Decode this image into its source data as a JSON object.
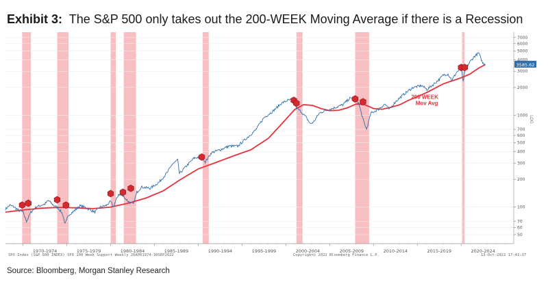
{
  "header": {
    "exhibit_label": "Exhibit 3:",
    "title": "The S&P 500 only takes out the 200-WEEK Moving Average if there is a Recession"
  },
  "footer": {
    "left_text": "SPX Index (S&P 500 INDEX) SPX 200 Week Support  Weekly 26APR1974-30SEP2022",
    "center_text": "Copyright© 2022 Bloomberg Finance L.P.",
    "right_text": "13-Oct-2022 17:41:37"
  },
  "source": "Source: Bloomberg, Morgan Stanley Research",
  "chart_data": {
    "type": "line",
    "title": "The S&P 500 only takes out the 200-WEEK Moving Average if there is a Recession",
    "y_scale": "log",
    "ylim": [
      40,
      8000
    ],
    "xlim": [
      1968,
      2026
    ],
    "y_ticks": [
      50,
      60,
      70,
      100,
      200,
      300,
      400,
      500,
      600,
      700,
      1000,
      2000,
      3000,
      4000,
      5000,
      6000,
      7000
    ],
    "x_tick_labels": [
      "1970-1974",
      "1975-1979",
      "1980-1984",
      "1985-1989",
      "1990-1994",
      "1995-1999",
      "2000-2004",
      "2005-2009",
      "2010-2014",
      "2015-2019",
      "2020-2024"
    ],
    "last_value_label": "3585.62",
    "axis_side_label": "LOG",
    "annotation": {
      "line1": "200 WEEK",
      "line2": "Mov Avg"
    },
    "colors": {
      "price": "#2f6eaa",
      "moving_average": "#e8313a",
      "recession": "#f28b8f",
      "marker": "#d42a2f",
      "last_value_box": "#2f6eaa"
    },
    "recession_shading": [
      [
        1969.9,
        1970.9
      ],
      [
        1973.9,
        1975.2
      ],
      [
        1980.0,
        1980.6
      ],
      [
        1981.5,
        1982.9
      ],
      [
        1990.5,
        1991.2
      ],
      [
        2001.2,
        2001.9
      ],
      [
        2007.9,
        2009.5
      ],
      [
        2020.1,
        2020.4
      ]
    ],
    "series": [
      {
        "name": "SPX Index",
        "x": [
          1968.0,
          1968.5,
          1969.0,
          1969.5,
          1970.0,
          1970.4,
          1970.9,
          1971.5,
          1972.5,
          1972.9,
          1973.5,
          1974.0,
          1974.5,
          1974.8,
          1975.2,
          1975.8,
          1976.5,
          1977.0,
          1977.8,
          1978.2,
          1978.8,
          1979.5,
          1980.0,
          1980.3,
          1980.9,
          1981.5,
          1982.0,
          1982.6,
          1983.0,
          1983.5,
          1984.5,
          1985.5,
          1986.5,
          1987.0,
          1987.65,
          1987.85,
          1988.5,
          1989.5,
          1990.4,
          1990.8,
          1991.5,
          1992.5,
          1993.5,
          1994.5,
          1995.5,
          1996.5,
          1997.5,
          1998.5,
          1999.5,
          2000.2,
          2000.7,
          2001.2,
          2001.7,
          2002.3,
          2002.8,
          2003.2,
          2003.8,
          2004.5,
          2005.5,
          2006.5,
          2007.3,
          2007.8,
          2008.3,
          2008.8,
          2009.2,
          2009.7,
          2010.5,
          2011.3,
          2011.8,
          2012.5,
          2013.5,
          2014.5,
          2015.5,
          2016.1,
          2016.8,
          2017.5,
          2018.0,
          2018.5,
          2018.95,
          2019.5,
          2020.0,
          2020.22,
          2020.5,
          2021.0,
          2021.5,
          2022.0,
          2022.45,
          2022.75
        ],
        "y": [
          95,
          105,
          100,
          92,
          88,
          70,
          88,
          100,
          108,
          118,
          104,
          98,
          85,
          65,
          82,
          90,
          103,
          100,
          92,
          88,
          100,
          104,
          115,
          100,
          138,
          130,
          115,
          108,
          145,
          165,
          160,
          185,
          240,
          290,
          325,
          230,
          270,
          340,
          355,
          310,
          390,
          420,
          460,
          460,
          560,
          680,
          940,
          1100,
          1350,
          1450,
          1470,
          1200,
          1100,
          950,
          800,
          850,
          1050,
          1120,
          1200,
          1300,
          1530,
          1480,
          1350,
          900,
          700,
          1050,
          1150,
          1320,
          1150,
          1400,
          1700,
          2000,
          2100,
          1900,
          2150,
          2450,
          2750,
          2800,
          2400,
          2950,
          3200,
          2300,
          3200,
          3800,
          4350,
          4750,
          3700,
          3585.62
        ]
      },
      {
        "name": "200 WEEK Mov Avg",
        "x": [
          1968,
          1970,
          1972,
          1974,
          1976,
          1978,
          1980,
          1982,
          1984,
          1986,
          1988,
          1990,
          1992,
          1994,
          1996,
          1998,
          2000,
          2001,
          2002,
          2003,
          2004,
          2005,
          2006,
          2007,
          2008,
          2009,
          2010,
          2011,
          2012,
          2013,
          2014,
          2016,
          2018,
          2020,
          2021,
          2022,
          2022.75
        ],
        "y": [
          88,
          93,
          97,
          99,
          98,
          96,
          100,
          110,
          125,
          150,
          200,
          260,
          305,
          360,
          420,
          560,
          900,
          1150,
          1300,
          1280,
          1180,
          1120,
          1130,
          1200,
          1320,
          1300,
          1180,
          1160,
          1220,
          1300,
          1450,
          1750,
          2200,
          2550,
          2800,
          3250,
          3550
        ]
      }
    ],
    "markers": [
      {
        "x": 1969.9,
        "y": 105
      },
      {
        "x": 1970.6,
        "y": 110
      },
      {
        "x": 1973.9,
        "y": 120
      },
      {
        "x": 1974.9,
        "y": 105
      },
      {
        "x": 1980.0,
        "y": 140
      },
      {
        "x": 1981.4,
        "y": 145
      },
      {
        "x": 1982.3,
        "y": 160
      },
      {
        "x": 1990.4,
        "y": 350
      },
      {
        "x": 2000.9,
        "y": 1450
      },
      {
        "x": 2001.2,
        "y": 1350
      },
      {
        "x": 2007.9,
        "y": 1500
      },
      {
        "x": 2008.8,
        "y": 1400
      },
      {
        "x": 2020.0,
        "y": 3300
      },
      {
        "x": 2020.4,
        "y": 3300
      }
    ]
  }
}
